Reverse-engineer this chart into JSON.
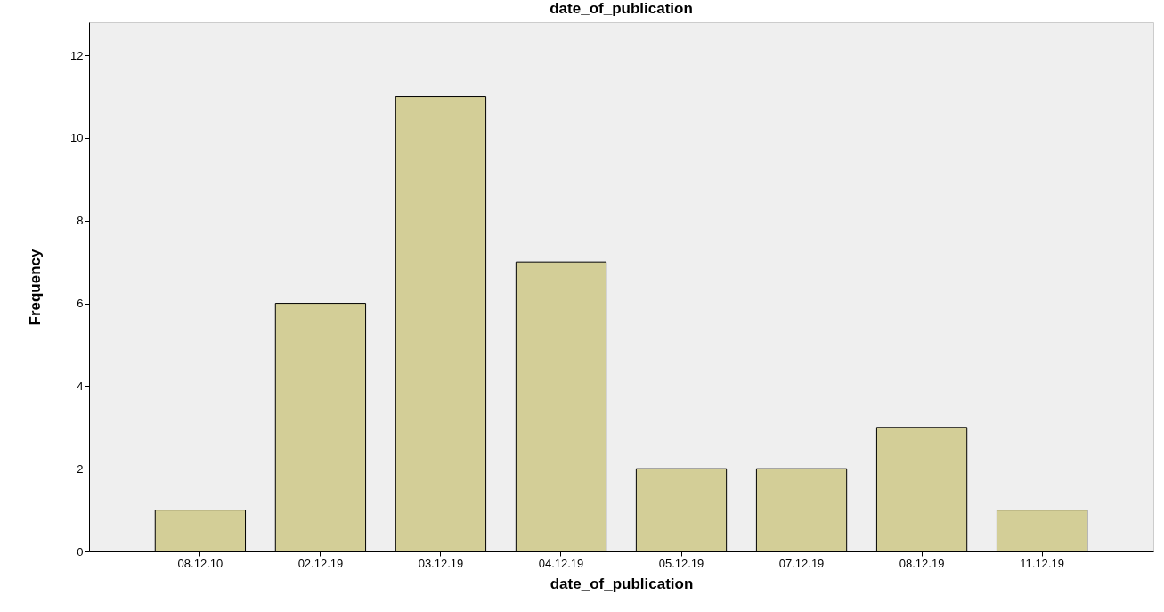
{
  "chart_data": {
    "type": "bar",
    "title": "date_of_publication",
    "xlabel": "date_of_publication",
    "ylabel": "Frequency",
    "categories": [
      "08.12.10",
      "02.12.19",
      "03.12.19",
      "04.12.19",
      "05.12.19",
      "07.12.19",
      "08.12.19",
      "11.12.19"
    ],
    "values": [
      1,
      6,
      11,
      7,
      2,
      2,
      3,
      1
    ],
    "color": "#d3ce97",
    "ylim": [
      0,
      12.8
    ],
    "yticks": [
      0,
      2,
      4,
      6,
      8,
      10,
      12
    ]
  }
}
